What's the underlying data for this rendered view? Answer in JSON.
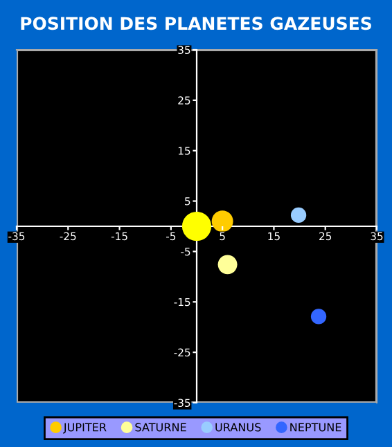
{
  "chart_data": {
    "type": "bubble",
    "title": "POSITION DES PLANETES GAZEUSES",
    "xlim": [
      -35,
      35
    ],
    "ylim": [
      -35,
      35
    ],
    "xticks": [
      -35,
      -25,
      -15,
      -5,
      5,
      15,
      25,
      35
    ],
    "yticks": [
      -35,
      -25,
      -15,
      -5,
      5,
      15,
      25,
      35
    ],
    "grid": false,
    "legend": "bottom",
    "marker": "circle",
    "series": [
      {
        "color": "#ffff00",
        "x": [
          0
        ],
        "values": [
          0
        ],
        "sizes": [
          1
        ]
      },
      {
        "name": "JUPITER",
        "color": "#ffcc00",
        "x": [
          5
        ],
        "values": [
          1
        ],
        "sizes": [
          0.54
        ]
      },
      {
        "name": "SATURNE",
        "color": "#ffff99",
        "x": [
          6
        ],
        "values": [
          -7.6
        ],
        "sizes": [
          0.44
        ]
      },
      {
        "name": "URANUS",
        "color": "#99ccff",
        "x": [
          19.8
        ],
        "values": [
          2.2
        ],
        "sizes": [
          0.28
        ]
      },
      {
        "name": "NEPTUNE",
        "color": "#3366ff",
        "x": [
          23.7
        ],
        "values": [
          -17.9
        ],
        "sizes": [
          0.28
        ]
      }
    ]
  }
}
